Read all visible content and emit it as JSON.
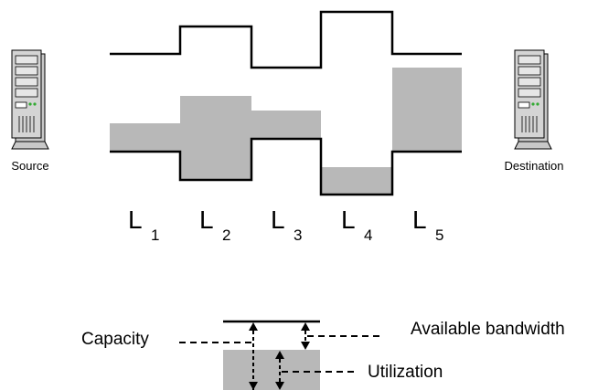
{
  "hosts": {
    "source": {
      "label": "Source",
      "icon": "server-icon"
    },
    "destination": {
      "label": "Destination",
      "icon": "server-icon"
    }
  },
  "links": [
    {
      "letter": "L",
      "sub": "1"
    },
    {
      "letter": "L",
      "sub": "2"
    },
    {
      "letter": "L",
      "sub": "3"
    },
    {
      "letter": "L",
      "sub": "4"
    },
    {
      "letter": "L",
      "sub": "5"
    }
  ],
  "legend": {
    "capacity": "Capacity",
    "available": "Available bandwidth",
    "utilization": "Utilization"
  },
  "colors": {
    "fill": "#b8b8b8",
    "line": "#000000",
    "server_body": "#c8c8c8"
  }
}
